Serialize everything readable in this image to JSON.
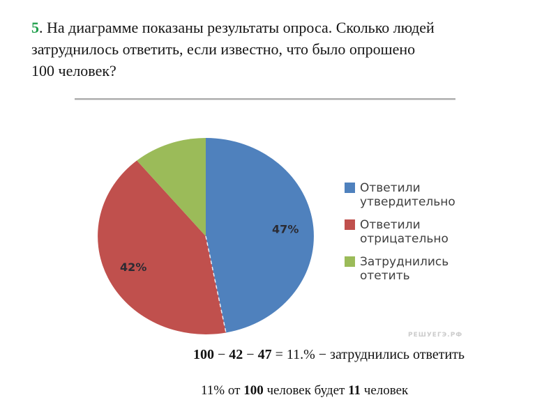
{
  "question": {
    "number": "5",
    "number_color": "#21a04d",
    "text": ". На диаграмме показаны результаты опроса. Сколько людей\nзатруднилось ответить, если известно, что было опрошено\n100 человек?"
  },
  "chart_data": {
    "type": "pie",
    "title": "",
    "categories": [
      "Ответили утвердительно",
      "Ответили отрицательно",
      "Затруднились отетить"
    ],
    "values": [
      47,
      42,
      11
    ],
    "slice_labels": [
      "47%",
      "42%",
      ""
    ],
    "colors": [
      "#4f81bd",
      "#c0504d",
      "#9bbb59"
    ],
    "label_color": "#2b2b33",
    "start_angle_deg": 0,
    "direction": "clockwise",
    "legend_position": "right"
  },
  "legend": {
    "items": [
      {
        "label": "Ответили\nутвердительно"
      },
      {
        "label": "Ответили\nотрицательно"
      },
      {
        "label": "Затруднились\nотетить"
      }
    ]
  },
  "watermark": {
    "text": "РЕШУЕГЭ.РФ"
  },
  "solution": {
    "line1": [
      {
        "text": "100",
        "bold": true
      },
      {
        "text": " − ",
        "bold": false
      },
      {
        "text": "42",
        "bold": true
      },
      {
        "text": " − ",
        "bold": false
      },
      {
        "text": "47",
        "bold": true
      },
      {
        "text": " = 11.% − затруднились ответить",
        "bold": false
      }
    ],
    "line2": [
      {
        "text": "11% от ",
        "bold": false
      },
      {
        "text": "100",
        "bold": true
      },
      {
        "text": " человек будет ",
        "bold": false
      },
      {
        "text": "11",
        "bold": true
      },
      {
        "text": " человек",
        "bold": false
      }
    ]
  }
}
